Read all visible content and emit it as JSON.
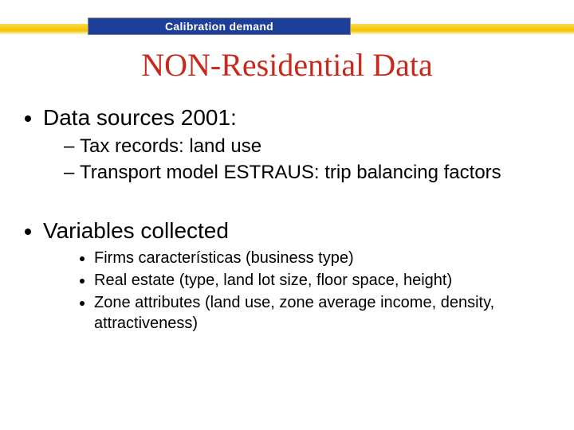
{
  "colors": {
    "title_color": "#c9281c",
    "header_bg": "#1d3f99",
    "header_text": "#ffffff",
    "body_text": "#000000",
    "yellow_bar_top": "#ffd84a",
    "yellow_bar_mid": "#f3c300",
    "background": "#ffffff"
  },
  "typography": {
    "title_family": "Times New Roman",
    "title_size_pt": 40,
    "body_family": "Arial",
    "level1_size_pt": 28,
    "level2_dash_size_pt": 24,
    "level2_bullet_size_pt": 20
  },
  "header": {
    "label": "Calibration demand"
  },
  "title": "NON-Residential Data",
  "bullets": {
    "group1": {
      "heading": "Data sources 2001:",
      "items": [
        "Tax records: land use",
        "Transport model ESTRAUS: trip balancing factors"
      ]
    },
    "group2": {
      "heading": "Variables collected",
      "items": [
        "Firms características (business type)",
        "Real estate (type, land lot size, floor space, height)",
        "Zone attributes (land use, zone average income, density, attractiveness)"
      ]
    }
  }
}
